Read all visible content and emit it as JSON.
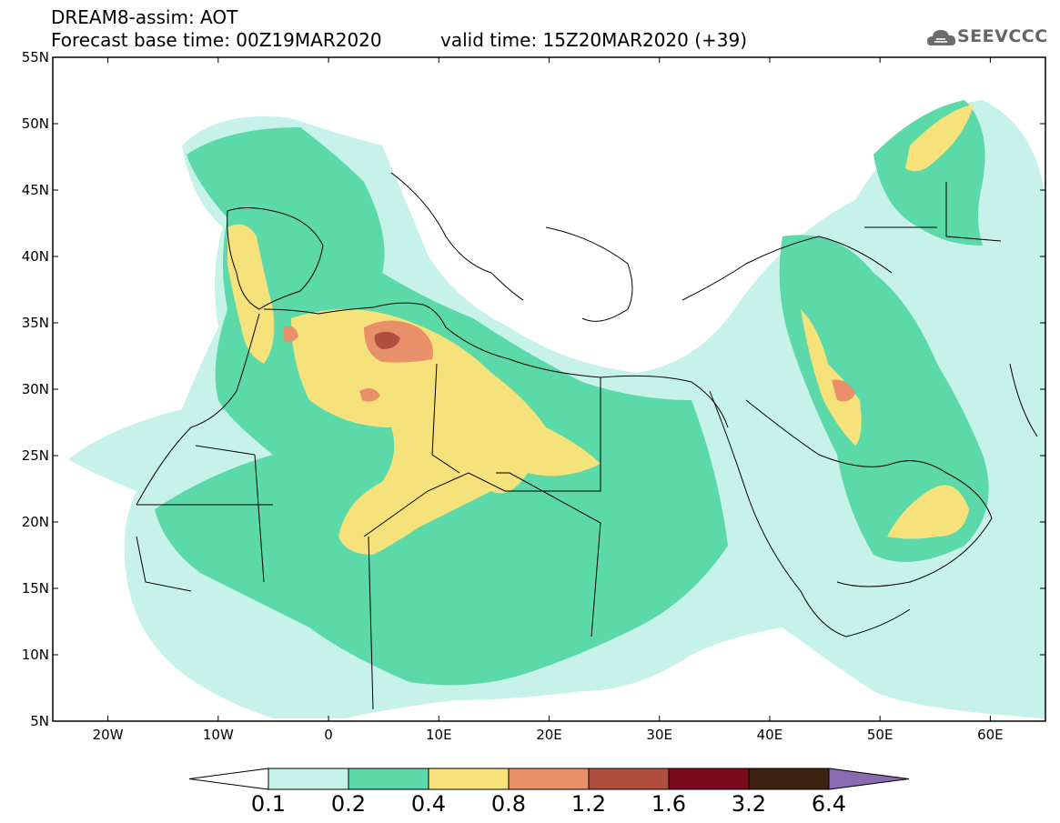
{
  "header": {
    "title": "DREAM8-assim: AOT",
    "base_time": "Forecast base time: 00Z19MAR2020",
    "valid_time": "valid time: 15Z20MAR2020 (+39)",
    "logo_text": "SEEVCCC",
    "logo_icon": "cloud-icon"
  },
  "map": {
    "lon_range": [
      -25,
      65
    ],
    "lat_range": [
      5,
      55
    ],
    "lat_labels": [
      "55N",
      "50N",
      "45N",
      "40N",
      "35N",
      "30N",
      "25N",
      "20N",
      "15N",
      "10N",
      "5N"
    ],
    "lon_labels": [
      "20W",
      "10W",
      "0",
      "10E",
      "20E",
      "30E",
      "40E",
      "50E",
      "60E"
    ]
  },
  "colorbar": {
    "levels": [
      "0.1",
      "0.2",
      "0.4",
      "0.8",
      "1.2",
      "1.6",
      "3.2",
      "6.4"
    ],
    "colors": [
      "#c6f2ea",
      "#5cd9a8",
      "#f5e27a",
      "#e8906a",
      "#b04e3f",
      "#7a0a1e",
      "#3e2410"
    ],
    "under_color": "#ffffff",
    "over_color": "#8a6ab0"
  },
  "colors": {
    "aot_0_1": "#c6f2ea",
    "aot_0_2": "#5cd9a8",
    "aot_0_4": "#f5e27a",
    "aot_0_8": "#e8906a",
    "aot_1_2": "#b04e3f",
    "aot_1_6": "#7a0a1e"
  }
}
